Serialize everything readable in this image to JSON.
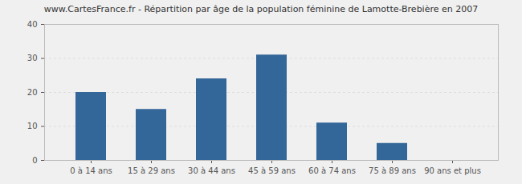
{
  "chart_data": {
    "type": "bar",
    "title": "www.CartesFrance.fr - Répartition par âge de la population féminine de Lamotte-Brebière en 2007",
    "categories": [
      "0 à 14 ans",
      "15 à 29 ans",
      "30 à 44 ans",
      "45 à 59 ans",
      "60 à 74 ans",
      "75 à 89 ans",
      "90 ans et plus"
    ],
    "values": [
      20,
      15,
      24,
      31,
      11,
      5,
      0
    ],
    "color": "#336699",
    "ylim": [
      0,
      40
    ],
    "yticks": [
      0,
      10,
      20,
      30,
      40
    ],
    "grid": true
  }
}
